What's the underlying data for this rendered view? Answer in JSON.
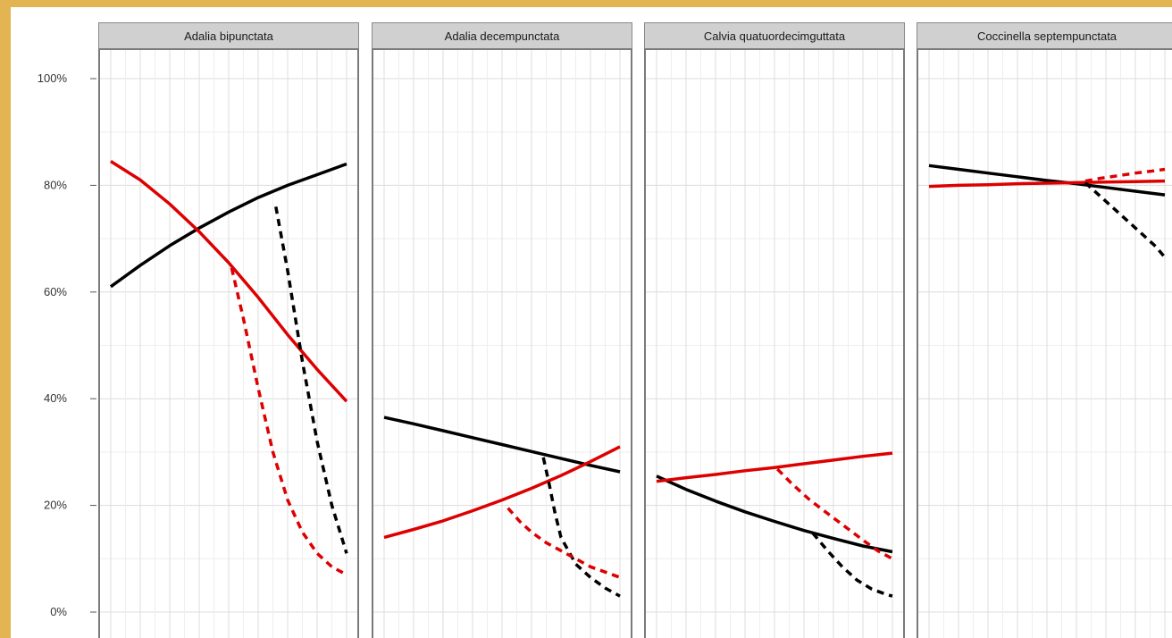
{
  "chart_data": {
    "type": "line",
    "facets": [
      "Adalia bipunctata",
      "Adalia decempunctata",
      "Calvia quatuordecimguttata",
      "Coccinella septempunctata"
    ],
    "y_ticks": [
      "0%",
      "20%",
      "40%",
      "60%",
      "80%",
      "100%"
    ],
    "ylim": [
      0,
      100
    ],
    "xlim": [
      0,
      8
    ],
    "grid": true,
    "legend": "none",
    "colors": {
      "black": "#000000",
      "red": "#dd0000",
      "strip": "#d0d0d0",
      "grid": "#e6e6e6"
    },
    "panels": [
      {
        "title": "Adalia bipunctata",
        "series": [
          {
            "color": "black",
            "dashed": false,
            "x": [
              0,
              1,
              2,
              3,
              4,
              5,
              6,
              7,
              8
            ],
            "y": [
              61,
              65,
              68.7,
              72,
              75,
              77.7,
              80,
              82,
              84
            ]
          },
          {
            "color": "red",
            "dashed": false,
            "x": [
              0,
              1,
              2,
              3,
              4,
              5,
              6,
              7,
              8
            ],
            "y": [
              84.5,
              81,
              76.5,
              71.3,
              65.5,
              59,
              52,
              45.5,
              39.5
            ]
          },
          {
            "color": "black",
            "dashed": true,
            "x": [
              5.6,
              6,
              6.5,
              7,
              7.5,
              8
            ],
            "y": [
              76,
              64,
              47,
              32,
              20,
              11
            ]
          },
          {
            "color": "red",
            "dashed": true,
            "x": [
              4.1,
              4.5,
              5,
              5.5,
              6,
              6.5,
              7,
              7.5,
              8
            ],
            "y": [
              64.5,
              55,
              42,
              30,
              21,
              15,
              11,
              8.5,
              7
            ]
          }
        ]
      },
      {
        "title": "Adalia decempunctata",
        "series": [
          {
            "color": "black",
            "dashed": false,
            "x": [
              0,
              1,
              2,
              3,
              4,
              5,
              6,
              7,
              8
            ],
            "y": [
              36.5,
              35.3,
              34,
              32.7,
              31.4,
              30.1,
              28.8,
              27.5,
              26.3
            ]
          },
          {
            "color": "red",
            "dashed": false,
            "x": [
              0,
              1,
              2,
              3,
              4,
              5,
              6,
              7,
              8
            ],
            "y": [
              14,
              15.5,
              17.1,
              19,
              21,
              23.2,
              25.6,
              28.2,
              31
            ]
          },
          {
            "color": "black",
            "dashed": true,
            "x": [
              5.4,
              5.6,
              5.8,
              6,
              6.5,
              7,
              7.5,
              8
            ],
            "y": [
              29,
              24,
              18.5,
              14,
              9,
              6.5,
              4.5,
              3
            ]
          },
          {
            "color": "red",
            "dashed": true,
            "x": [
              4.2,
              4.6,
              5,
              5.5,
              6,
              6.5,
              7,
              7.5,
              8
            ],
            "y": [
              19.5,
              17,
              15,
              13,
              11.5,
              10,
              8.5,
              7.5,
              6.5
            ]
          }
        ]
      },
      {
        "title": "Calvia quatuordecimguttata",
        "series": [
          {
            "color": "black",
            "dashed": false,
            "x": [
              0,
              1,
              2,
              3,
              4,
              5,
              6,
              7,
              8
            ],
            "y": [
              25.5,
              23,
              20.8,
              18.8,
              17,
              15.3,
              13.8,
              12.4,
              11.3
            ]
          },
          {
            "color": "red",
            "dashed": false,
            "x": [
              0,
              1,
              2,
              3,
              4,
              5,
              6,
              7,
              8
            ],
            "y": [
              24.5,
              25.2,
              25.8,
              26.5,
              27.1,
              27.8,
              28.5,
              29.2,
              29.8
            ]
          },
          {
            "color": "black",
            "dashed": true,
            "x": [
              5.3,
              5.8,
              6.3,
              6.8,
              7.3,
              7.8,
              8
            ],
            "y": [
              14.8,
              11.5,
              8.5,
              6,
              4.3,
              3.3,
              3
            ]
          },
          {
            "color": "red",
            "dashed": true,
            "x": [
              4.1,
              4.6,
              5.2,
              5.8,
              6.4,
              7,
              7.5,
              8
            ],
            "y": [
              26.8,
              24,
              21,
              18.5,
              16,
              13.5,
              11.5,
              10
            ]
          }
        ]
      },
      {
        "title": "Coccinella septempunctata",
        "series": [
          {
            "color": "black",
            "dashed": false,
            "x": [
              0,
              1,
              2,
              3,
              4,
              5,
              6,
              7,
              8
            ],
            "y": [
              83.7,
              83,
              82.3,
              81.6,
              80.9,
              80.3,
              79.6,
              78.9,
              78.2
            ]
          },
          {
            "color": "red",
            "dashed": false,
            "x": [
              0,
              1,
              2,
              3,
              4,
              5,
              6,
              7,
              8
            ],
            "y": [
              79.8,
              80,
              80.1,
              80.3,
              80.4,
              80.5,
              80.6,
              80.7,
              80.8
            ]
          },
          {
            "color": "black",
            "dashed": true,
            "x": [
              5.3,
              5.7,
              6.2,
              6.7,
              7.2,
              7.7,
              8
            ],
            "y": [
              80.5,
              78.5,
              76,
              73.5,
              71,
              68.5,
              66.5
            ]
          },
          {
            "color": "red",
            "dashed": true,
            "x": [
              5.3,
              5.8,
              6.4,
              7,
              7.6,
              8
            ],
            "y": [
              80.8,
              81.3,
              81.8,
              82.3,
              82.7,
              83
            ]
          }
        ]
      }
    ]
  }
}
